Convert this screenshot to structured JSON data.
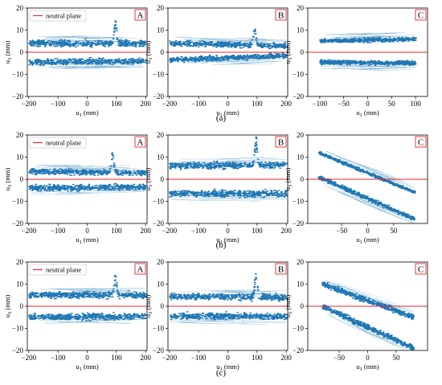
{
  "figure": {
    "row_captions": [
      "(a)",
      "(b)",
      "(c)"
    ],
    "series_color": "#1f77b4",
    "neutral_plane_color": "#e8262b",
    "panel_letter_border_color": "#e8262b"
  },
  "chart_data": [
    {
      "type": "scatter",
      "row": 0,
      "panel": "A",
      "show_legend": true,
      "legend_label": "neutral plane",
      "legend_placement": "top-left",
      "xlabel": "u1 (mm)",
      "ylabel": "u3 (mm)",
      "xlim": [
        -205,
        205
      ],
      "ylim": [
        -20,
        20
      ],
      "xticks": [
        -200,
        -100,
        0,
        100,
        200
      ],
      "yticks": [
        -20,
        -10,
        0,
        10,
        20
      ],
      "neutral_plane_y": 0,
      "upper_band": {
        "y_at_xmin": 4,
        "y_at_xmax": 4,
        "spread": 1.2
      },
      "lower_band": {
        "y_at_xmin": -4.5,
        "y_at_xmax": -4,
        "spread": 1.2
      },
      "peak": {
        "x": 95,
        "height": 10,
        "width": 6
      }
    },
    {
      "type": "scatter",
      "row": 0,
      "panel": "B",
      "show_legend": false,
      "xlabel": "u1 (mm)",
      "ylabel": "",
      "xlim": [
        -205,
        205
      ],
      "ylim": [
        -20,
        20
      ],
      "xticks": [
        -200,
        -100,
        0,
        100,
        200
      ],
      "yticks": [
        -20,
        -10,
        0,
        10,
        20
      ],
      "neutral_plane_y": 0,
      "upper_band": {
        "y_at_xmin": 4,
        "y_at_xmax": 3,
        "spread": 1.0
      },
      "lower_band": {
        "y_at_xmin": -3.5,
        "y_at_xmax": -1.5,
        "spread": 1.0
      },
      "peak": {
        "x": 90,
        "height": 8.5,
        "width": 6
      }
    },
    {
      "type": "scatter",
      "row": 0,
      "panel": "C",
      "show_legend": false,
      "xlabel": "u1 (mm)",
      "ylabel": "",
      "xlim": [
        -125,
        125
      ],
      "ylim": [
        -20,
        20
      ],
      "xticks": [
        -100,
        -50,
        0,
        50,
        100
      ],
      "yticks": [
        -20,
        -10,
        0,
        10,
        20
      ],
      "neutral_plane_y": 0,
      "upper_band": {
        "y_at_xmin": 5,
        "y_at_xmax": 6,
        "spread": 0.8
      },
      "lower_band": {
        "y_at_xmin": -4.5,
        "y_at_xmax": -5,
        "spread": 0.8
      },
      "band_x_range": [
        -100,
        100
      ],
      "peak": null
    },
    {
      "type": "scatter",
      "row": 1,
      "panel": "A",
      "show_legend": true,
      "legend_label": "neutral plane",
      "legend_placement": "top-left",
      "xlabel": "u1 (mm)",
      "ylabel": "u3 (mm)",
      "xlim": [
        -205,
        205
      ],
      "ylim": [
        -20,
        20
      ],
      "xticks": [
        -200,
        -100,
        0,
        100,
        200
      ],
      "yticks": [
        -20,
        -10,
        0,
        10,
        20
      ],
      "neutral_plane_y": 0,
      "upper_band": {
        "y_at_xmin": 3.5,
        "y_at_xmax": 3,
        "spread": 1.1
      },
      "lower_band": {
        "y_at_xmin": -4,
        "y_at_xmax": -3.5,
        "spread": 1.1
      },
      "peak": {
        "x": 85,
        "height": 9,
        "width": 6
      }
    },
    {
      "type": "scatter",
      "row": 1,
      "panel": "B",
      "show_legend": false,
      "xlabel": "u1 (mm)",
      "ylabel": "",
      "xlim": [
        -205,
        205
      ],
      "ylim": [
        -20,
        20
      ],
      "xticks": [
        -200,
        -100,
        0,
        100,
        200
      ],
      "yticks": [
        -20,
        -10,
        0,
        10,
        20
      ],
      "neutral_plane_y": 0,
      "upper_band": {
        "y_at_xmin": 6,
        "y_at_xmax": 6.5,
        "spread": 1.3
      },
      "lower_band": {
        "y_at_xmin": -6.5,
        "y_at_xmax": -6.5,
        "spread": 1.3
      },
      "peak": {
        "x": 95,
        "height": 13,
        "width": 6
      }
    },
    {
      "type": "scatter",
      "row": 1,
      "panel": "C",
      "show_legend": false,
      "xlabel": "u1 (mm)",
      "ylabel": "",
      "xlim": [
        -115,
        115
      ],
      "ylim": [
        -20,
        20
      ],
      "xticks": [
        -50,
        0,
        50
      ],
      "yticks": [
        -20,
        -10,
        0,
        10,
        20
      ],
      "neutral_plane_y": 0,
      "upper_band": {
        "y_at_xmin": 12,
        "y_at_xmax": -6,
        "spread": 0.6
      },
      "lower_band": {
        "y_at_xmin": 1,
        "y_at_xmax": -18,
        "spread": 0.8
      },
      "band_x_range": [
        -95,
        90
      ],
      "peak": null
    },
    {
      "type": "scatter",
      "row": 2,
      "panel": "A",
      "show_legend": true,
      "legend_label": "neutral plane",
      "legend_placement": "top-left",
      "xlabel": "u1 (mm)",
      "ylabel": "u3 (mm)",
      "xlim": [
        -205,
        205
      ],
      "ylim": [
        -20,
        20
      ],
      "xticks": [
        -200,
        -100,
        0,
        100,
        200
      ],
      "yticks": [
        -20,
        -10,
        0,
        10,
        20
      ],
      "neutral_plane_y": 0,
      "upper_band": {
        "y_at_xmin": 5,
        "y_at_xmax": 5,
        "spread": 1.2
      },
      "lower_band": {
        "y_at_xmin": -5,
        "y_at_xmax": -4.5,
        "spread": 1.2
      },
      "peak": {
        "x": 95,
        "height": 10,
        "width": 6
      }
    },
    {
      "type": "scatter",
      "row": 2,
      "panel": "B",
      "show_legend": false,
      "xlabel": "u1 (mm)",
      "ylabel": "",
      "xlim": [
        -205,
        205
      ],
      "ylim": [
        -20,
        20
      ],
      "xticks": [
        -200,
        -100,
        0,
        100,
        200
      ],
      "yticks": [
        -20,
        -10,
        0,
        10,
        20
      ],
      "neutral_plane_y": 0,
      "upper_band": {
        "y_at_xmin": 4.5,
        "y_at_xmax": 4,
        "spread": 1.2
      },
      "lower_band": {
        "y_at_xmin": -4.5,
        "y_at_xmax": -4.5,
        "spread": 1.2
      },
      "peak": {
        "x": 95,
        "height": 12,
        "width": 6
      }
    },
    {
      "type": "scatter",
      "row": 2,
      "panel": "C",
      "show_legend": false,
      "xlabel": "u1 (mm)",
      "ylabel": "",
      "xlim": [
        -105,
        105
      ],
      "ylim": [
        -20,
        20
      ],
      "xticks": [
        -50,
        0,
        50
      ],
      "yticks": [
        -20,
        -10,
        0,
        10,
        20
      ],
      "neutral_plane_y": 0,
      "upper_band": {
        "y_at_xmin": 10,
        "y_at_xmax": -5,
        "spread": 1.0
      },
      "lower_band": {
        "y_at_xmin": 0,
        "y_at_xmax": -19,
        "spread": 1.0
      },
      "band_x_range": [
        -80,
        80
      ],
      "peak": null
    }
  ]
}
